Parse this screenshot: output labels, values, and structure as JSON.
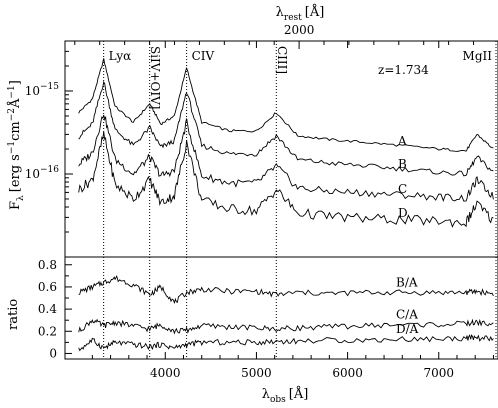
{
  "chart_data": [
    {
      "type": "line",
      "panel": "flux",
      "top_axis": {
        "label_main": "λ",
        "label_sub": "rest",
        "label_unit": "[Å]",
        "ticks": [
          2000
        ]
      },
      "xlabel_main": "λ",
      "xlabel_sub": "obs",
      "xlabel_unit": "[Å]",
      "ylabel_main": "F",
      "ylabel_sub": "λ",
      "ylabel_unit_pre": "[erg s",
      "ylabel_unit_mid": "cm",
      "ylabel_unit_post": "Å",
      "ylabel_unit_end": "]",
      "y_scale": "log",
      "xlim": [
        2900,
        7650
      ],
      "ylim": [
        1e-17,
        4e-15
      ],
      "ytick_labels": [
        {
          "base": "10",
          "exp": "−15",
          "value": 1e-15
        },
        {
          "base": "10",
          "exp": "−16",
          "value": 1e-16
        }
      ],
      "redshift_label": "z=1.734",
      "emission_lines": [
        {
          "label": "Lyα",
          "x": 3324
        },
        {
          "label": "SiIV+OIV]",
          "x": 3829
        },
        {
          "label": "CIV",
          "x": 4234
        },
        {
          "label": "CIII]",
          "x": 5218
        },
        {
          "label": "MgII",
          "x": 7654
        }
      ],
      "x": [
        3050,
        3200,
        3325,
        3450,
        3650,
        3830,
        3950,
        4100,
        4234,
        4400,
        4700,
        5000,
        5218,
        5450,
        5800,
        6200,
        6600,
        7000,
        7300,
        7420,
        7600
      ],
      "series": [
        {
          "name": "A",
          "values": [
            5.5e-16,
            8e-16,
            2.4e-15,
            6.5e-16,
            4.2e-16,
            7e-16,
            4e-16,
            5e-16,
            1.9e-15,
            4.2e-16,
            3.3e-16,
            3.3e-16,
            5.5e-16,
            2.9e-16,
            2.6e-16,
            2.4e-16,
            2.2e-16,
            2e-16,
            1.9e-16,
            3e-16,
            2e-16
          ]
        },
        {
          "name": "B",
          "values": [
            2.8e-16,
            4e-16,
            1.3e-15,
            3.4e-16,
            2.2e-16,
            3.6e-16,
            2.1e-16,
            2.5e-16,
            1e-15,
            2.2e-16,
            1.75e-16,
            1.75e-16,
            2.9e-16,
            1.5e-16,
            1.35e-16,
            1.25e-16,
            1.15e-16,
            1.05e-16,
            1e-16,
            1.6e-16,
            1.05e-16
          ]
        },
        {
          "name": "C",
          "values": [
            1.3e-16,
            1.8e-16,
            5.5e-16,
            1.5e-16,
            1e-16,
            1.6e-16,
            9.5e-17,
            1.1e-16,
            4.2e-16,
            9.5e-17,
            7.8e-17,
            7.8e-17,
            1.25e-16,
            6.8e-17,
            6.2e-17,
            5.9e-17,
            5.6e-17,
            5.3e-17,
            5.1e-17,
            8.5e-17,
            5.3e-17
          ]
        },
        {
          "name": "D",
          "values": [
            6.5e-17,
            8.5e-17,
            3e-16,
            7.5e-17,
            5e-17,
            8.5e-17,
            4.5e-17,
            5.5e-17,
            2.4e-16,
            4.8e-17,
            3.8e-17,
            3.6e-17,
            6.5e-17,
            3.4e-17,
            3.1e-17,
            2.9e-17,
            2.8e-17,
            2.7e-17,
            2.6e-17,
            4.4e-17,
            2.7e-17
          ]
        }
      ]
    },
    {
      "type": "line",
      "panel": "ratio",
      "xlabel_main": "λ",
      "xlabel_sub": "obs",
      "xlabel_unit": "[Å]",
      "ylabel": "ratio",
      "xlim": [
        2900,
        7650
      ],
      "ylim": [
        -0.05,
        0.87
      ],
      "xticks": [
        4000,
        5000,
        6000,
        7000
      ],
      "yticks": [
        "0",
        "0.2",
        "0.4",
        "0.6",
        "0.8"
      ],
      "x": [
        3050,
        3200,
        3325,
        3450,
        3650,
        3830,
        3950,
        4100,
        4234,
        4400,
        4700,
        5000,
        5218,
        5450,
        5800,
        6200,
        6600,
        7000,
        7300,
        7420,
        7600
      ],
      "series": [
        {
          "name": "B/A",
          "values": [
            0.55,
            0.6,
            0.64,
            0.68,
            0.62,
            0.53,
            0.6,
            0.46,
            0.55,
            0.58,
            0.56,
            0.56,
            0.53,
            0.55,
            0.54,
            0.55,
            0.55,
            0.55,
            0.55,
            0.56,
            0.54
          ]
        },
        {
          "name": "C/A",
          "values": [
            0.2,
            0.3,
            0.25,
            0.28,
            0.25,
            0.22,
            0.26,
            0.2,
            0.21,
            0.25,
            0.24,
            0.23,
            0.22,
            0.23,
            0.24,
            0.25,
            0.26,
            0.26,
            0.27,
            0.28,
            0.26
          ]
        },
        {
          "name": "D/A",
          "values": [
            0.03,
            0.12,
            0.05,
            0.1,
            0.08,
            0.06,
            0.08,
            0.05,
            0.08,
            0.1,
            0.1,
            0.1,
            0.11,
            0.11,
            0.12,
            0.12,
            0.13,
            0.13,
            0.14,
            0.14,
            0.13
          ]
        }
      ]
    }
  ]
}
